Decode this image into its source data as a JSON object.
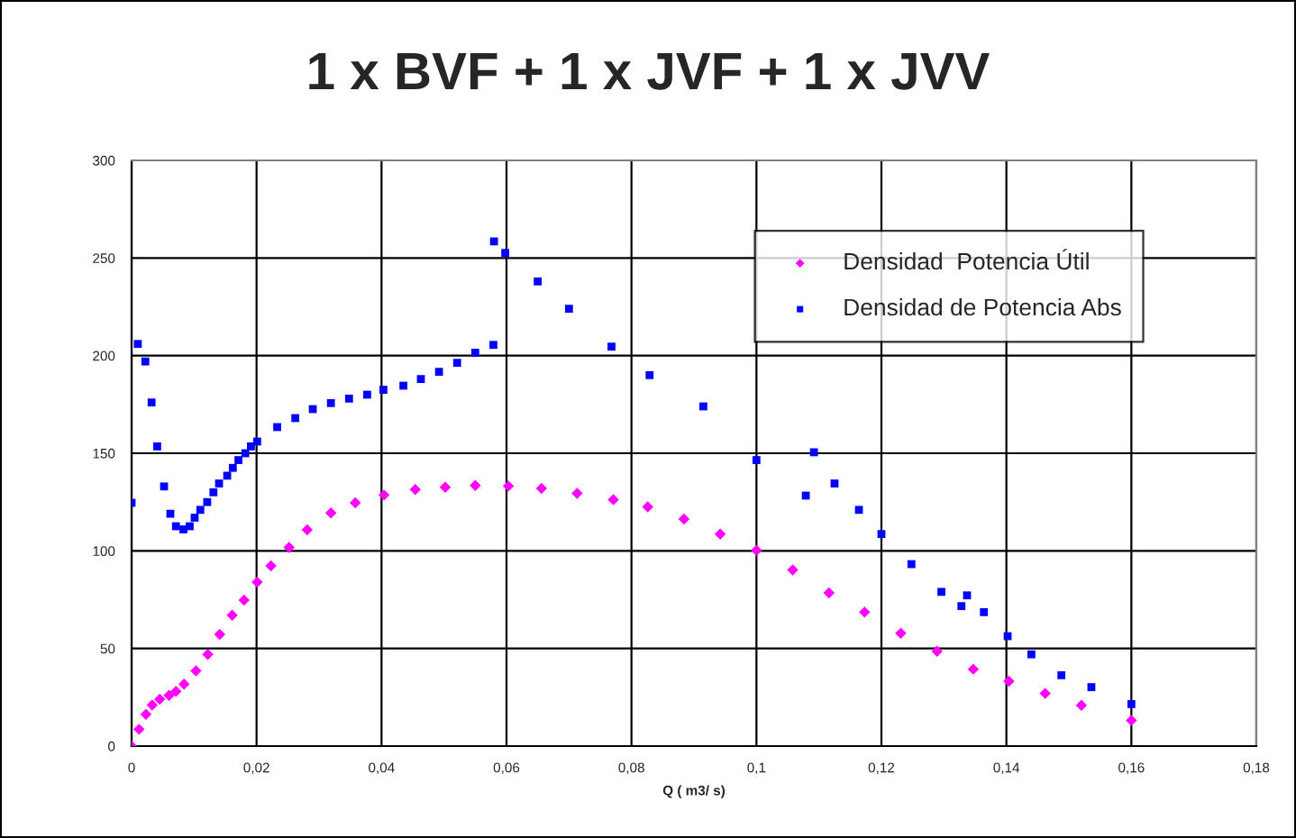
{
  "chart_data": {
    "type": "scatter",
    "title": "1 x BVF + 1 x JVF + 1 x JVV",
    "xlabel": "Q ( m3/ s)",
    "series": [
      {
        "name": "Densidad  Potencia Útil",
        "color": "#ff00ff",
        "marker": "diamond",
        "x": [
          0,
          0.0012,
          0.0023,
          0.0033,
          0.0045,
          0.006,
          0.0071,
          0.0084,
          0.0103,
          0.0122,
          0.0141,
          0.0161,
          0.018,
          0.0201,
          0.0223,
          0.0252,
          0.0281,
          0.0319,
          0.0358,
          0.0404,
          0.0454,
          0.0502,
          0.055,
          0.0603,
          0.0656,
          0.0713,
          0.0771,
          0.0826,
          0.0884,
          0.0942,
          0.1,
          0.1058,
          0.1116,
          0.1173,
          0.1231,
          0.1289,
          0.1347,
          0.1404,
          0.1462,
          0.152,
          0.16
        ],
        "values": [
          0,
          8.6,
          16.3,
          21,
          24,
          26,
          28,
          31.7,
          38.5,
          47,
          57.2,
          67,
          74.8,
          84,
          92.3,
          101.8,
          110.8,
          119.4,
          124.6,
          128.6,
          131.4,
          132.6,
          133.5,
          133.2,
          132,
          129.5,
          126.2,
          122.5,
          116.3,
          108.6,
          100.3,
          90.2,
          78.5,
          68.6,
          57.8,
          48.6,
          39.4,
          33.2,
          27,
          20.9,
          13.2
        ]
      },
      {
        "name": "Densidad de Potencia Abs",
        "color": "#0000ff",
        "marker": "square",
        "x": [
          0,
          0.001,
          0.0022,
          0.0032,
          0.0041,
          0.0052,
          0.0062,
          0.0071,
          0.0083,
          0.0093,
          0.0101,
          0.011,
          0.0121,
          0.0131,
          0.014,
          0.0153,
          0.0162,
          0.0171,
          0.0182,
          0.0191,
          0.0201,
          0.0233,
          0.0262,
          0.029,
          0.0319,
          0.0348,
          0.0377,
          0.0403,
          0.0435,
          0.0463,
          0.0492,
          0.0521,
          0.055,
          0.0579,
          0.058,
          0.0598,
          0.065,
          0.07,
          0.0768,
          0.0829,
          0.0915,
          0.1,
          0.1079,
          0.1092,
          0.1125,
          0.1164,
          0.12,
          0.1248,
          0.1296,
          0.1328,
          0.1337,
          0.1364,
          0.1402,
          0.144,
          0.1488,
          0.1536,
          0.16
        ],
        "values": [
          124.6,
          206,
          197,
          176,
          153.5,
          133,
          119,
          112.6,
          111,
          112.6,
          117,
          121,
          125,
          130,
          134.5,
          138.5,
          142.5,
          146.5,
          150,
          153.5,
          156,
          163.4,
          168,
          172.6,
          175.7,
          178,
          180,
          182.5,
          184.6,
          188,
          191.7,
          196.3,
          201.5,
          205.5,
          258.5,
          252.6,
          238,
          224,
          204.6,
          190,
          174,
          146.5,
          128.3,
          150.5,
          134.5,
          121,
          108.6,
          93.2,
          79,
          71.7,
          77.2,
          68.6,
          56.3,
          47,
          36.3,
          30.2,
          21.5
        ]
      }
    ],
    "xlim": [
      0,
      0.18
    ],
    "xticks": [
      {
        "value": 0,
        "label": "0"
      },
      {
        "value": 0.02,
        "label": "0,02"
      },
      {
        "value": 0.04,
        "label": "0,04"
      },
      {
        "value": 0.06,
        "label": "0,06"
      },
      {
        "value": 0.08,
        "label": "0,08"
      },
      {
        "value": 0.1,
        "label": "0,1"
      },
      {
        "value": 0.12,
        "label": "0,12"
      },
      {
        "value": 0.14,
        "label": "0,14"
      },
      {
        "value": 0.16,
        "label": "0,16"
      },
      {
        "value": 0.18,
        "label": "0,18"
      }
    ],
    "ylim": [
      0,
      300
    ],
    "yticks": [
      0,
      50,
      100,
      150,
      200,
      250,
      300
    ],
    "grid": true,
    "legend": "top right"
  }
}
